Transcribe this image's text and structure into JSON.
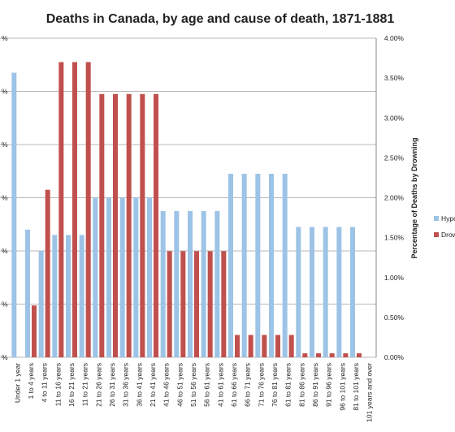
{
  "chart_data": {
    "type": "bar",
    "title": "Deaths in Canada, by age and cause of death, 1871-1881",
    "categories": [
      "Under 1 year",
      "1 to 4 years",
      "4 to 11 years",
      "11 to 16 years",
      "16 to 21 years",
      "11 to 21 years",
      "21 to 26 years",
      "26 to 31 years",
      "31 to 36 years",
      "36 to 41 years",
      "21 to 41 years",
      "41 to 46 years",
      "46 to 51 years",
      "51 to 56 years",
      "56 to 61 years",
      "41 to 61 years",
      "61 to 66 years",
      "66 to 71 years",
      "71 to 76 years",
      "76 to 81 years",
      "61 to 81 years",
      "81 to 86 years",
      "86 to 91 years",
      "91 to 96 years",
      "96 to 101 years",
      "81 to 101 years",
      "101 years and over"
    ],
    "series": [
      {
        "name": "Hypo",
        "axis": "left",
        "color": "#9dc3e6",
        "values": [
          5.35,
          2.4,
          2.0,
          2.3,
          2.3,
          2.3,
          3.0,
          3.0,
          3.0,
          3.0,
          3.0,
          2.75,
          2.75,
          2.75,
          2.75,
          2.75,
          3.45,
          3.45,
          3.45,
          3.45,
          3.45,
          2.45,
          2.45,
          2.45,
          2.45,
          2.45,
          0.0
        ]
      },
      {
        "name": "Drow",
        "axis": "right",
        "color": "#c0504d",
        "values": [
          0.0,
          0.0065,
          0.021,
          0.037,
          0.037,
          0.037,
          0.033,
          0.033,
          0.033,
          0.033,
          0.033,
          0.0133,
          0.0133,
          0.0133,
          0.0133,
          0.0133,
          0.0028,
          0.0028,
          0.0028,
          0.0028,
          0.0028,
          0.0005,
          0.0005,
          0.0005,
          0.0005,
          0.0005,
          0.0
        ]
      }
    ],
    "left_axis": {
      "ylim": [
        0,
        6
      ],
      "tick_values": [
        0,
        1,
        2,
        3,
        4,
        5,
        6
      ],
      "tick_labels": [
        "%",
        "%",
        "%",
        "%",
        "%",
        "%",
        "%"
      ]
    },
    "right_axis": {
      "ylabel": "Percentage of Deaths by Drowning",
      "ylim": [
        0,
        0.04
      ],
      "tick_values": [
        0,
        0.005,
        0.01,
        0.015,
        0.02,
        0.025,
        0.03,
        0.035,
        0.04
      ],
      "tick_labels": [
        "0.00%",
        "0.50%",
        "1.00%",
        "1.50%",
        "2.00%",
        "2.50%",
        "3.00%",
        "3.50%",
        "4.00%"
      ]
    },
    "grid": true,
    "legend_position": "right"
  }
}
